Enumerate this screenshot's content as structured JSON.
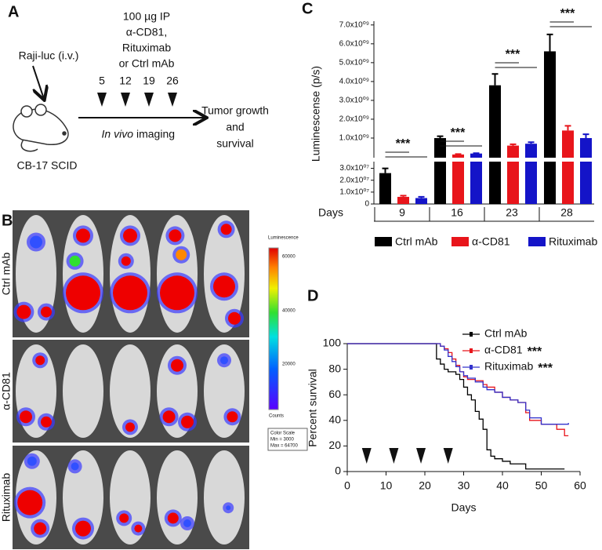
{
  "panel_a": {
    "label": "A",
    "injection": "Raji-luc (i.v.)",
    "treatment": [
      "100 µg IP",
      "α-CD81,",
      "Rituximab",
      "or Ctrl mAb"
    ],
    "days": [
      "5",
      "12",
      "19",
      "26"
    ],
    "imaging_italic": "In vivo",
    "imaging": "imaging",
    "outcome": [
      "Tumor growth",
      "and",
      "survival"
    ],
    "mouse": "CB-17 SCID"
  },
  "panel_b": {
    "label": "B",
    "rows": [
      "Ctrl mAb",
      "α-CD81",
      "Rituximab"
    ],
    "colorbar": {
      "title": "Luminescence",
      "ticks": [
        "60000",
        "40000",
        "20000"
      ],
      "unit": "Counts",
      "scale": [
        "Color Scale",
        "Min = 3000",
        "Max = 64700"
      ]
    }
  },
  "chart_data": [
    {
      "type": "bar",
      "panel_label": "C",
      "ylabel": "Luminescense (p/s)",
      "xlabel": "Days",
      "categories": [
        "9",
        "16",
        "23",
        "28"
      ],
      "series": [
        {
          "name": "Ctrl mAb",
          "color": "#000000",
          "values": [
            26000000,
            1000000000,
            3800000000,
            5600000000
          ],
          "errors": [
            4000000,
            100000000,
            600000000,
            900000000
          ]
        },
        {
          "name": "α-CD81",
          "color": "#e8151b",
          "values": [
            6000000,
            130000000,
            600000000,
            1400000000
          ],
          "errors": [
            1000000,
            20000000,
            70000000,
            250000000
          ]
        },
        {
          "name": "Rituximab",
          "color": "#1414c8",
          "values": [
            5000000,
            180000000,
            700000000,
            1000000000
          ],
          "errors": [
            1000000,
            20000000,
            80000000,
            200000000
          ]
        }
      ],
      "ylim_lower": [
        0,
        35000000
      ],
      "ylim_upper": [
        0,
        7200000000
      ],
      "yticks": [
        0,
        {
          "value": 10000000,
          "label": "1.0x10⁰⁷"
        },
        {
          "value": 20000000,
          "label": "2.0x10⁰⁷"
        },
        {
          "value": 30000000,
          "label": "3.0x10⁰⁷"
        },
        {
          "value": 1000000000,
          "label": "1.0x10⁰⁹"
        },
        {
          "value": 2000000000,
          "label": "2.0x10⁰⁹"
        },
        {
          "value": 3000000000,
          "label": "3.0x10⁰⁹"
        },
        {
          "value": 4000000000,
          "label": "4.0x10⁰⁹"
        },
        {
          "value": 5000000000,
          "label": "5.0x10⁰⁹"
        },
        {
          "value": 6000000000,
          "label": "6.0x10⁰⁹"
        },
        {
          "value": 7000000000,
          "label": "7.0x10⁰⁹"
        }
      ],
      "annotations": [
        "***",
        "***",
        "***",
        "***"
      ],
      "legend": "bottom"
    },
    {
      "type": "step",
      "panel_label": "D",
      "xlabel": "Days",
      "ylabel": "Percent survival",
      "xlim": [
        0,
        60
      ],
      "xticks": [
        0,
        10,
        20,
        30,
        40,
        50,
        60
      ],
      "ylim": [
        0,
        100
      ],
      "yticks": [
        0,
        20,
        40,
        60,
        80,
        100
      ],
      "treatment_days": [
        5,
        12,
        19,
        26
      ],
      "legend": "upper right",
      "series": [
        {
          "name": "Ctrl mAb",
          "color": "#000000",
          "x": [
            0,
            23,
            24,
            25,
            26,
            28,
            29,
            30,
            31,
            32,
            33,
            34,
            35,
            36,
            37,
            38,
            40,
            42,
            46,
            56
          ],
          "values": [
            100,
            88,
            84,
            80,
            78,
            76,
            72,
            66,
            60,
            56,
            47,
            41,
            33,
            17,
            12,
            10,
            8,
            6,
            2,
            2
          ]
        },
        {
          "name": "α-CD81",
          "color": "#e8151b",
          "significance": "***",
          "x": [
            0,
            24,
            25,
            26,
            27,
            28,
            29,
            30,
            31,
            33,
            35,
            36,
            38,
            40,
            42,
            44,
            46,
            47,
            50,
            54,
            56,
            57
          ],
          "values": [
            100,
            98,
            96,
            93,
            88,
            83,
            78,
            74,
            72,
            71,
            68,
            66,
            62,
            58,
            56,
            54,
            46,
            40,
            37,
            33,
            28,
            28
          ]
        },
        {
          "name": "Rituximab",
          "color": "#3333cc",
          "significance": "***",
          "x": [
            0,
            24,
            25,
            26,
            27,
            28,
            29,
            30,
            31,
            33,
            35,
            36,
            38,
            40,
            42,
            44,
            46,
            47,
            50,
            57
          ],
          "values": [
            100,
            98,
            95,
            90,
            86,
            82,
            78,
            75,
            73,
            70,
            66,
            64,
            62,
            58,
            56,
            54,
            48,
            42,
            37,
            38
          ]
        }
      ]
    }
  ]
}
